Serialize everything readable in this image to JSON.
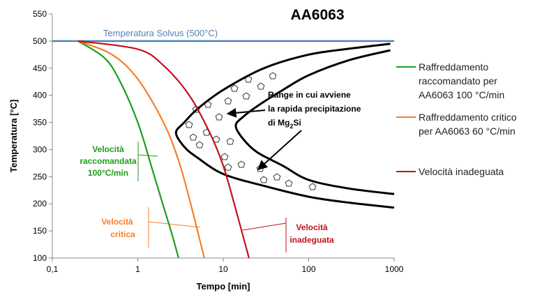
{
  "chart_data": {
    "type": "line",
    "title": "AA6063",
    "x_label": "Tempo [min]",
    "y_label": "Temperatura [°C]",
    "xscale": "log",
    "xlim": [
      0.1,
      1000
    ],
    "xticks": [
      {
        "value": 0.1,
        "label": "0,1"
      },
      1,
      10,
      100,
      1000
    ],
    "ylim": [
      100,
      550
    ],
    "yticks": [
      100,
      150,
      200,
      250,
      300,
      350,
      400,
      450,
      500,
      550
    ],
    "grid": false,
    "series": [
      {
        "name": "Raffreddamento raccomandato per AA6063 100 °C/min",
        "color": "#1a9e1a",
        "x": [
          0.2,
          0.4,
          0.6,
          1,
          1.5,
          2,
          2.5,
          3
        ],
        "values": [
          500,
          470,
          430,
          350,
          260,
          195,
          145,
          100
        ]
      },
      {
        "name": "Raffreddamento critico per AA6063 60 °C/min",
        "color": "#f57f2a",
        "x": [
          0.2,
          0.5,
          1,
          2,
          3,
          4,
          5,
          6
        ],
        "values": [
          500,
          475,
          430,
          350,
          280,
          210,
          150,
          100
        ]
      },
      {
        "name": "Velocità inadeguata",
        "color": "#c0121b",
        "x": [
          0.2,
          1,
          2,
          4,
          7,
          10,
          14,
          20
        ],
        "values": [
          500,
          485,
          455,
          400,
          330,
          270,
          190,
          100
        ]
      }
    ],
    "c_curves": [
      {
        "color": "#000000",
        "x": [
          900,
          300,
          100,
          30,
          10,
          5,
          3.5,
          2.8,
          3.5,
          5,
          10,
          30,
          100,
          300,
          1000
        ],
        "values": [
          495,
          486,
          475,
          450,
          410,
          375,
          350,
          331,
          305,
          285,
          255,
          233,
          213,
          202,
          193
        ]
      },
      {
        "color": "#000000",
        "x": [
          900,
          300,
          100,
          50,
          25,
          17,
          14,
          17,
          25,
          50,
          100,
          300,
          1000
        ],
        "values": [
          483,
          465,
          437,
          410,
          380,
          360,
          344,
          320,
          295,
          270,
          244,
          228,
          218
        ]
      }
    ],
    "solvus": {
      "label": "Temperatura Solvus (500°C)",
      "value": 500,
      "color": "#4f81bd"
    },
    "annotations": {
      "recommended": [
        "Velocità",
        "raccomandata",
        "100°C/min"
      ],
      "critical": [
        "Velocità",
        "critica"
      ],
      "inadequate": [
        "Velocità",
        "inadeguata"
      ],
      "range": [
        "Range in cui avviene",
        "la rapida precipitazione"
      ],
      "range_formula": [
        "di Mg",
        "2",
        "Si"
      ]
    }
  }
}
